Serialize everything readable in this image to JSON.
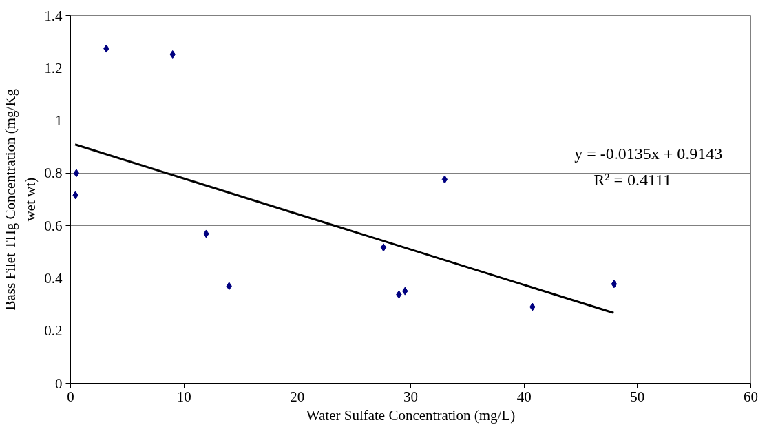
{
  "chart_data": {
    "type": "scatter",
    "xlabel": "Water Sulfate Concentration (mg/L)",
    "ylabel": "Bass Filet THg Concentration (mg/Kg wet wt)",
    "series": [
      {
        "color": "#000080",
        "marker": "diamond",
        "x": [
          3.15,
          9.0,
          0.51,
          0.43,
          11.96,
          13.98,
          27.6,
          28.96,
          29.5,
          33.0,
          40.74,
          47.94
        ],
        "values": [
          1.274,
          1.252,
          0.8,
          0.716,
          0.569,
          0.37,
          0.517,
          0.338,
          0.351,
          0.776,
          0.291,
          0.378
        ]
      },
      {
        "type": "line",
        "color": "#000000",
        "marker": "none",
        "x": [
          0.4,
          47.9
        ],
        "values": [
          0.909,
          0.268
        ]
      }
    ],
    "annotations": [
      "y = -0.0135x + 0.9143",
      "R² = 0.4111"
    ],
    "xlim": [
      0,
      60
    ],
    "xticks": [
      0,
      10,
      20,
      30,
      40,
      50,
      60
    ],
    "ylim": [
      0,
      1.4
    ],
    "yticks": [
      0,
      0.2,
      0.4,
      0.6,
      0.8,
      1,
      1.2,
      1.4
    ],
    "grid": "y"
  }
}
